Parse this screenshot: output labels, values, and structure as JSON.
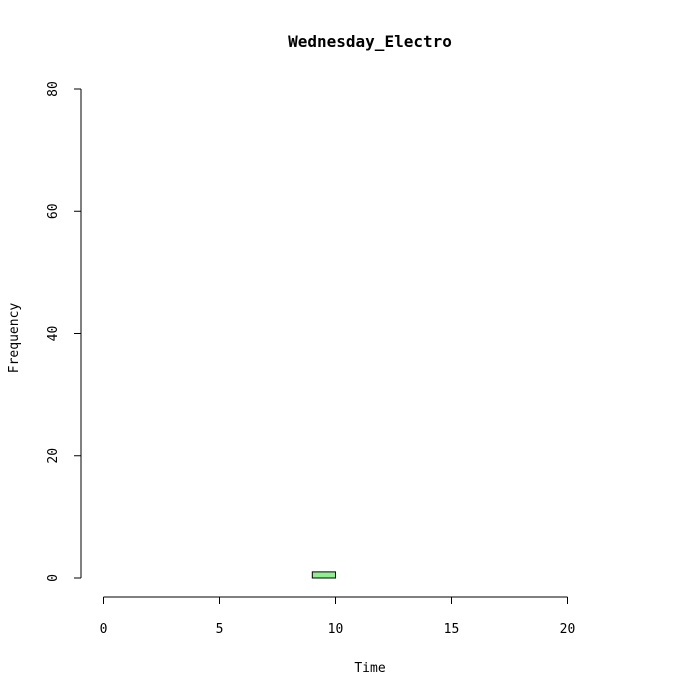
{
  "chart_data": {
    "type": "bar",
    "title": "Wednesday_Electro",
    "xlabel": "Time",
    "ylabel": "Frequency",
    "xlim": [
      0,
      24
    ],
    "ylim": [
      0,
      80
    ],
    "x_ticks": [
      0,
      5,
      10,
      15,
      20
    ],
    "y_ticks": [
      0,
      20,
      40,
      60,
      80
    ],
    "bins": [
      {
        "start": 0,
        "end": 1,
        "count": 0
      },
      {
        "start": 1,
        "end": 2,
        "count": 0
      },
      {
        "start": 2,
        "end": 3,
        "count": 0
      },
      {
        "start": 3,
        "end": 4,
        "count": 0
      },
      {
        "start": 4,
        "end": 5,
        "count": 0
      },
      {
        "start": 5,
        "end": 6,
        "count": 0
      },
      {
        "start": 6,
        "end": 7,
        "count": 0
      },
      {
        "start": 7,
        "end": 8,
        "count": 0
      },
      {
        "start": 8,
        "end": 9,
        "count": 0
      },
      {
        "start": 9,
        "end": 10,
        "count": 1
      },
      {
        "start": 10,
        "end": 11,
        "count": 0
      },
      {
        "start": 11,
        "end": 12,
        "count": 0
      },
      {
        "start": 12,
        "end": 13,
        "count": 0
      },
      {
        "start": 13,
        "end": 14,
        "count": 0
      },
      {
        "start": 14,
        "end": 15,
        "count": 0
      },
      {
        "start": 15,
        "end": 16,
        "count": 0
      },
      {
        "start": 16,
        "end": 17,
        "count": 0
      },
      {
        "start": 17,
        "end": 18,
        "count": 0
      },
      {
        "start": 18,
        "end": 19,
        "count": 0
      },
      {
        "start": 19,
        "end": 20,
        "count": 0
      },
      {
        "start": 20,
        "end": 21,
        "count": 0
      },
      {
        "start": 21,
        "end": 22,
        "count": 0
      },
      {
        "start": 22,
        "end": 23,
        "count": 0
      },
      {
        "start": 23,
        "end": 24,
        "count": 0
      }
    ],
    "bar_color": "#90EE90",
    "grid": false
  }
}
